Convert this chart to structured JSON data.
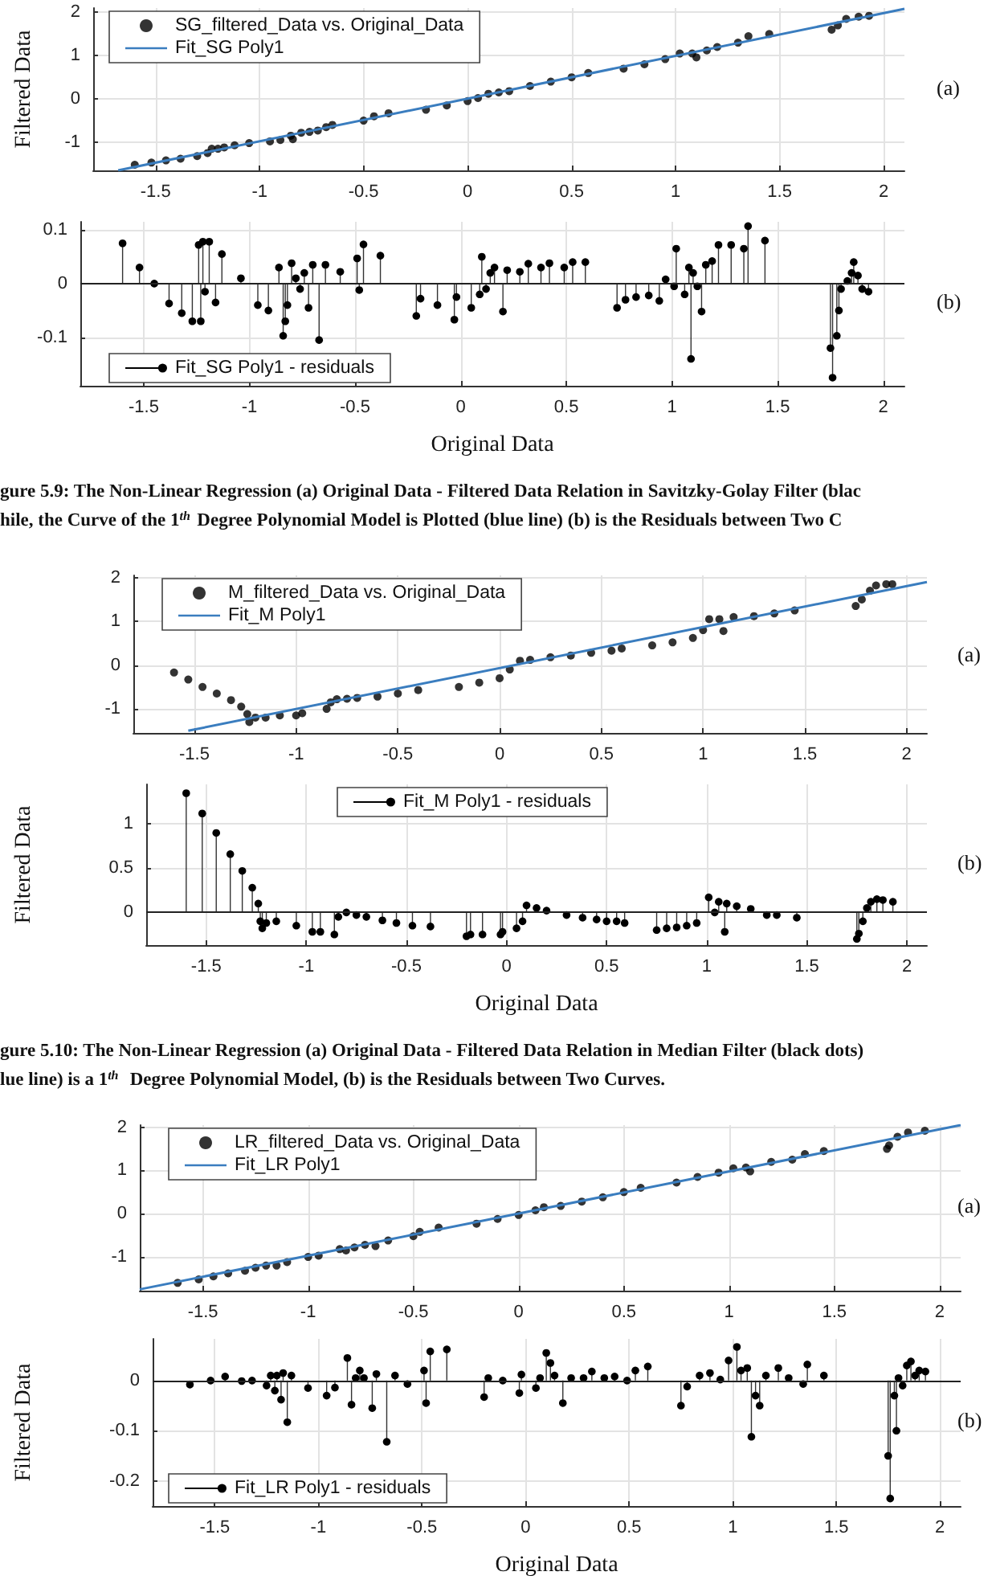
{
  "chart_data": [
    {
      "type": "scatter",
      "xlim": [
        -1.8,
        2.1
      ],
      "xticks": [
        -1.5,
        -1,
        -0.5,
        0,
        0.5,
        1,
        1.5,
        2
      ],
      "ylim": [
        -1.65,
        2.1
      ],
      "yticks": [
        -1,
        0,
        1,
        2
      ],
      "grid": true,
      "legend": "top left",
      "ylabel": "Filtered Data",
      "annotations": [
        "(a)"
      ],
      "series": [
        {
          "name": "SG_filtered_Data vs. Original_Data",
          "marker": "circle",
          "color": "#000000",
          "x": [
            -1.6,
            -1.52,
            -1.45,
            -1.38,
            -1.3,
            -1.25,
            -1.23,
            -1.2,
            -1.17,
            -1.12,
            -1.05,
            -0.95,
            -0.9,
            -0.85,
            -0.84,
            -0.8,
            -0.76,
            -0.72,
            -0.68,
            -0.65,
            -0.5,
            -0.45,
            -0.38,
            -0.2,
            -0.1,
            0,
            0.05,
            0.1,
            0.15,
            0.2,
            0.3,
            0.4,
            0.5,
            0.58,
            0.75,
            0.85,
            0.95,
            1.02,
            1.08,
            1.1,
            1.15,
            1.2,
            1.3,
            1.35,
            1.45,
            1.75,
            1.78,
            1.82,
            1.88,
            1.93
          ],
          "values": [
            -1.52,
            -1.47,
            -1.42,
            -1.38,
            -1.32,
            -1.25,
            -1.15,
            -1.15,
            -1.12,
            -1.07,
            -1.02,
            -0.98,
            -0.95,
            -0.85,
            -0.93,
            -0.78,
            -0.76,
            -0.73,
            -0.65,
            -0.6,
            -0.5,
            -0.4,
            -0.33,
            -0.25,
            -0.15,
            -0.05,
            0.02,
            0.12,
            0.15,
            0.18,
            0.3,
            0.4,
            0.5,
            0.6,
            0.7,
            0.8,
            0.92,
            1.05,
            1.05,
            0.96,
            1.12,
            1.2,
            1.3,
            1.45,
            1.5,
            1.6,
            1.7,
            1.85,
            1.9,
            1.92
          ]
        },
        {
          "name": "Fit_SG Poly1",
          "type": "line",
          "marker": "none",
          "color": "#3a7dbf",
          "x": [
            -1.68,
            2.1
          ],
          "values": [
            -1.65,
            2.08
          ]
        }
      ]
    },
    {
      "type": "lollipop",
      "xlim": [
        -1.8,
        2.1
      ],
      "xticks": [
        -1.5,
        -1,
        -0.5,
        0,
        0.5,
        1,
        1.5,
        2
      ],
      "ylim": [
        -0.19,
        0.115
      ],
      "yticks": [
        -0.1,
        0,
        0.1
      ],
      "grid": true,
      "legend": "bottom left",
      "xlabel": "Original Data",
      "annotations": [
        "(b)",
        "gure 5.9: The Non-Linear Regression (a) Original Data - Filtered Data Relation in Savitzky-Golay Filter (blac",
        "hile, the Curve of the 1$^{th}$ Degree Polynomial Model is Plotted (blue line) (b) is the Residuals between Two C"
      ],
      "series": [
        {
          "name": "Fit_SG Poly1 - residuals",
          "color": "#000000",
          "x": [
            -1.6,
            -1.52,
            -1.45,
            -1.38,
            -1.32,
            -1.27,
            -1.24,
            -1.23,
            -1.22,
            -1.21,
            -1.19,
            -1.16,
            -1.13,
            -1.04,
            -0.96,
            -0.91,
            -0.86,
            -0.84,
            -0.83,
            -0.82,
            -0.8,
            -0.78,
            -0.76,
            -0.74,
            -0.72,
            -0.7,
            -0.67,
            -0.64,
            -0.57,
            -0.49,
            -0.48,
            -0.46,
            -0.38,
            -0.21,
            -0.19,
            -0.11,
            -0.03,
            -0.02,
            0.05,
            0.09,
            0.1,
            0.12,
            0.14,
            0.16,
            0.2,
            0.22,
            0.28,
            0.32,
            0.38,
            0.42,
            0.49,
            0.53,
            0.59,
            0.74,
            0.78,
            0.83,
            0.89,
            0.94,
            0.97,
            1.01,
            1.02,
            1.06,
            1.08,
            1.09,
            1.1,
            1.12,
            1.14,
            1.16,
            1.19,
            1.22,
            1.28,
            1.34,
            1.36,
            1.44,
            1.75,
            1.76,
            1.78,
            1.79,
            1.8,
            1.83,
            1.85,
            1.86,
            1.88,
            1.9,
            1.93
          ],
          "values": [
            0.075,
            0.03,
            0,
            -0.037,
            -0.055,
            -0.07,
            0.072,
            -0.07,
            0.078,
            -0.015,
            0.078,
            -0.035,
            0.055,
            0.01,
            -0.04,
            -0.05,
            0.03,
            -0.097,
            -0.07,
            -0.04,
            0.038,
            0.01,
            -0.01,
            0.02,
            -0.045,
            0.035,
            -0.105,
            0.035,
            0.022,
            0.047,
            -0.012,
            0.073,
            0.052,
            -0.06,
            -0.028,
            -0.04,
            -0.067,
            -0.025,
            -0.045,
            -0.02,
            0.05,
            -0.01,
            0.02,
            0.03,
            -0.052,
            0.025,
            0.022,
            0.037,
            0.03,
            0.038,
            0.03,
            0.04,
            0.04,
            -0.045,
            -0.03,
            -0.025,
            -0.022,
            -0.032,
            0.008,
            -0.005,
            0.065,
            -0.02,
            0.03,
            -0.14,
            0.02,
            -0.005,
            -0.052,
            0.035,
            0.042,
            0.072,
            0.072,
            0.065,
            0.107,
            0.08,
            -0.12,
            -0.175,
            -0.097,
            -0.05,
            -0.01,
            0.005,
            0.02,
            0.04,
            0.015,
            -0.01,
            -0.015
          ]
        }
      ]
    },
    {
      "type": "scatter",
      "xlim": [
        -1.8,
        2.1
      ],
      "xticks": [
        -1.5,
        -1,
        -0.5,
        0,
        0.5,
        1,
        1.5,
        2
      ],
      "ylim": [
        -1.55,
        2.05
      ],
      "yticks": [
        -1,
        0,
        1,
        2
      ],
      "grid": true,
      "legend": "top left",
      "annotations": [
        "(a)"
      ],
      "series": [
        {
          "name": "M_filtered_Data vs. Original_Data",
          "marker": "circle",
          "color": "#000000",
          "x": [
            -1.6,
            -1.53,
            -1.46,
            -1.39,
            -1.32,
            -1.27,
            -1.24,
            -1.23,
            -1.2,
            -1.15,
            -1.08,
            -1.0,
            -0.97,
            -0.85,
            -0.83,
            -0.8,
            -0.75,
            -0.7,
            -0.6,
            -0.5,
            -0.4,
            -0.2,
            -0.1,
            0,
            0.05,
            0.1,
            0.15,
            0.25,
            0.35,
            0.45,
            0.55,
            0.6,
            0.75,
            0.85,
            0.95,
            1.0,
            1.03,
            1.08,
            1.1,
            1.15,
            1.25,
            1.35,
            1.45,
            1.75,
            1.78,
            1.82,
            1.85,
            1.9,
            1.93
          ],
          "values": [
            -0.17,
            -0.33,
            -0.5,
            -0.65,
            -0.8,
            -0.95,
            -1.12,
            -1.3,
            -1.2,
            -1.2,
            -1.15,
            -1.15,
            -1.1,
            -1.0,
            -0.85,
            -0.78,
            -0.77,
            -0.75,
            -0.72,
            -0.65,
            -0.57,
            -0.5,
            -0.4,
            -0.3,
            -0.1,
            0.1,
            0.12,
            0.18,
            0.22,
            0.28,
            0.33,
            0.38,
            0.45,
            0.52,
            0.62,
            0.8,
            1.05,
            1.05,
            0.78,
            1.1,
            1.12,
            1.18,
            1.25,
            1.35,
            1.5,
            1.7,
            1.82,
            1.85,
            1.85
          ]
        },
        {
          "name": "Fit_M Poly1",
          "type": "line",
          "marker": "none",
          "color": "#3a7dbf",
          "x": [
            -1.53,
            2.1
          ],
          "values": [
            -1.5,
            1.9
          ]
        }
      ]
    },
    {
      "type": "lollipop",
      "xlim": [
        -1.8,
        2.1
      ],
      "xticks": [
        -1.5,
        -1,
        -0.5,
        0,
        0.5,
        1,
        1.5,
        2
      ],
      "ylim": [
        -0.37,
        1.45
      ],
      "yticks": [
        0,
        0.5,
        1
      ],
      "grid": true,
      "legend": "top",
      "xlabel": "Original Data",
      "ylabel": "Filtered Data",
      "annotations": [
        "(b)",
        "gure 5.10: The Non-Linear Regression (a) Original Data - Filtered Data Relation in Median Filter (black dots)",
        "lue line) is a 1$^{th}$  Degree Polynomial Model, (b) is the Residuals between Two Curves."
      ],
      "series": [
        {
          "name": "Fit_M Poly1 - residuals",
          "color": "#000000",
          "x": [
            -1.6,
            -1.52,
            -1.45,
            -1.38,
            -1.32,
            -1.27,
            -1.24,
            -1.23,
            -1.22,
            -1.2,
            -1.15,
            -1.05,
            -0.97,
            -0.93,
            -0.86,
            -0.84,
            -0.8,
            -0.75,
            -0.7,
            -0.62,
            -0.55,
            -0.47,
            -0.38,
            -0.2,
            -0.18,
            -0.12,
            -0.03,
            -0.02,
            0.05,
            0.08,
            0.1,
            0.15,
            0.2,
            0.3,
            0.38,
            0.45,
            0.5,
            0.55,
            0.59,
            0.75,
            0.8,
            0.85,
            0.9,
            0.95,
            1.01,
            1.04,
            1.06,
            1.09,
            1.1,
            1.15,
            1.22,
            1.3,
            1.35,
            1.45,
            1.75,
            1.76,
            1.78,
            1.8,
            1.82,
            1.85,
            1.88,
            1.93
          ],
          "values": [
            1.35,
            1.12,
            0.9,
            0.66,
            0.47,
            0.28,
            0.1,
            -0.1,
            -0.18,
            -0.12,
            -0.1,
            -0.15,
            -0.22,
            -0.22,
            -0.25,
            -0.05,
            0,
            -0.03,
            -0.05,
            -0.09,
            -0.12,
            -0.15,
            -0.16,
            -0.27,
            -0.25,
            -0.25,
            -0.25,
            -0.22,
            -0.18,
            -0.1,
            0.08,
            0.05,
            0.02,
            -0.03,
            -0.06,
            -0.08,
            -0.1,
            -0.1,
            -0.12,
            -0.2,
            -0.18,
            -0.17,
            -0.15,
            -0.12,
            0.17,
            0,
            0.12,
            -0.22,
            0.1,
            0.07,
            0.04,
            -0.03,
            -0.03,
            -0.06,
            -0.3,
            -0.24,
            -0.1,
            0.05,
            0.12,
            0.15,
            0.14,
            0.12
          ]
        }
      ]
    },
    {
      "type": "scatter",
      "xlim": [
        -1.8,
        2.1
      ],
      "xticks": [
        -1.5,
        -1,
        -0.5,
        0,
        0.5,
        1,
        1.5,
        2
      ],
      "ylim": [
        -1.78,
        2.05
      ],
      "yticks": [
        -1,
        0,
        1,
        2
      ],
      "grid": true,
      "legend": "top left",
      "annotations": [
        "(a)"
      ],
      "series": [
        {
          "name": "LR_filtered_Data vs. Original_Data",
          "marker": "circle",
          "color": "#000000",
          "x": [
            -1.62,
            -1.52,
            -1.45,
            -1.38,
            -1.3,
            -1.25,
            -1.2,
            -1.15,
            -1.1,
            -1.0,
            -0.95,
            -0.85,
            -0.82,
            -0.78,
            -0.73,
            -0.68,
            -0.62,
            -0.5,
            -0.47,
            -0.38,
            -0.2,
            -0.1,
            0,
            0.08,
            0.12,
            0.2,
            0.3,
            0.4,
            0.5,
            0.58,
            0.75,
            0.85,
            0.95,
            1.02,
            1.08,
            1.1,
            1.2,
            1.3,
            1.36,
            1.45,
            1.75,
            1.76,
            1.8,
            1.85,
            1.93
          ],
          "values": [
            -1.6,
            -1.52,
            -1.45,
            -1.38,
            -1.32,
            -1.25,
            -1.2,
            -1.2,
            -1.12,
            -1.0,
            -0.97,
            -0.82,
            -0.85,
            -0.78,
            -0.72,
            -0.75,
            -0.62,
            -0.52,
            -0.42,
            -0.32,
            -0.23,
            -0.12,
            -0.03,
            0.08,
            0.15,
            0.18,
            0.28,
            0.38,
            0.5,
            0.6,
            0.72,
            0.85,
            0.95,
            1.05,
            1.07,
            0.98,
            1.2,
            1.25,
            1.38,
            1.45,
            1.5,
            1.58,
            1.78,
            1.88,
            1.92
          ]
        },
        {
          "name": "Fit_LR Poly1",
          "type": "line",
          "marker": "none",
          "color": "#3a7dbf",
          "x": [
            -1.8,
            2.1
          ],
          "values": [
            -1.75,
            2.05
          ]
        }
      ]
    },
    {
      "type": "lollipop",
      "xlim": [
        -1.8,
        2.1
      ],
      "xticks": [
        -1.5,
        -1,
        -0.5,
        0,
        0.5,
        1,
        1.5,
        2
      ],
      "ylim": [
        -0.25,
        0.083
      ],
      "yticks": [
        -0.2,
        -0.1,
        0
      ],
      "grid": true,
      "legend": "bottom left",
      "xlabel": "Original Data",
      "ylabel": "Filtered Data",
      "annotations": [
        "(b)"
      ],
      "series": [
        {
          "name": "Fit_LR Poly1 - residuals",
          "color": "#000000",
          "x": [
            -1.62,
            -1.52,
            -1.45,
            -1.37,
            -1.32,
            -1.25,
            -1.23,
            -1.21,
            -1.2,
            -1.18,
            -1.17,
            -1.15,
            -1.13,
            -1.05,
            -0.96,
            -0.92,
            -0.86,
            -0.84,
            -0.82,
            -0.8,
            -0.78,
            -0.74,
            -0.72,
            -0.67,
            -0.63,
            -0.57,
            -0.49,
            -0.48,
            -0.46,
            -0.38,
            -0.2,
            -0.18,
            -0.11,
            -0.03,
            -0.02,
            0.05,
            0.07,
            0.1,
            0.12,
            0.14,
            0.18,
            0.22,
            0.28,
            0.32,
            0.38,
            0.43,
            0.49,
            0.53,
            0.59,
            0.75,
            0.78,
            0.84,
            0.89,
            0.94,
            0.98,
            1.02,
            1.04,
            1.07,
            1.09,
            1.11,
            1.13,
            1.16,
            1.22,
            1.27,
            1.34,
            1.36,
            1.44,
            1.75,
            1.76,
            1.78,
            1.79,
            1.8,
            1.82,
            1.84,
            1.86,
            1.88,
            1.9,
            1.93
          ],
          "values": [
            -0.008,
            0,
            0.008,
            -0.001,
            0,
            -0.01,
            0.01,
            -0.02,
            0.01,
            -0.038,
            0.015,
            -0.083,
            0.01,
            -0.015,
            -0.03,
            -0.014,
            0.045,
            -0.048,
            0.005,
            0.02,
            0.005,
            -0.055,
            0.013,
            -0.122,
            0.01,
            -0.007,
            0.02,
            -0.045,
            0.058,
            0.062,
            -0.033,
            0.005,
            0,
            -0.025,
            0.012,
            -0.015,
            0.005,
            0.055,
            0.035,
            0.01,
            -0.045,
            0.005,
            0.005,
            0.018,
            0.005,
            0.008,
            0,
            0.02,
            0.028,
            -0.05,
            -0.012,
            0.01,
            0.015,
            0.002,
            0.04,
            0.067,
            0.02,
            0.025,
            -0.112,
            -0.03,
            -0.05,
            0.01,
            0.025,
            0.005,
            -0.007,
            0.032,
            0.01,
            -0.15,
            -0.235,
            -0.03,
            -0.1,
            0.005,
            -0.01,
            0.03,
            0.038,
            0.01,
            0.02,
            0.018
          ]
        }
      ]
    }
  ]
}
